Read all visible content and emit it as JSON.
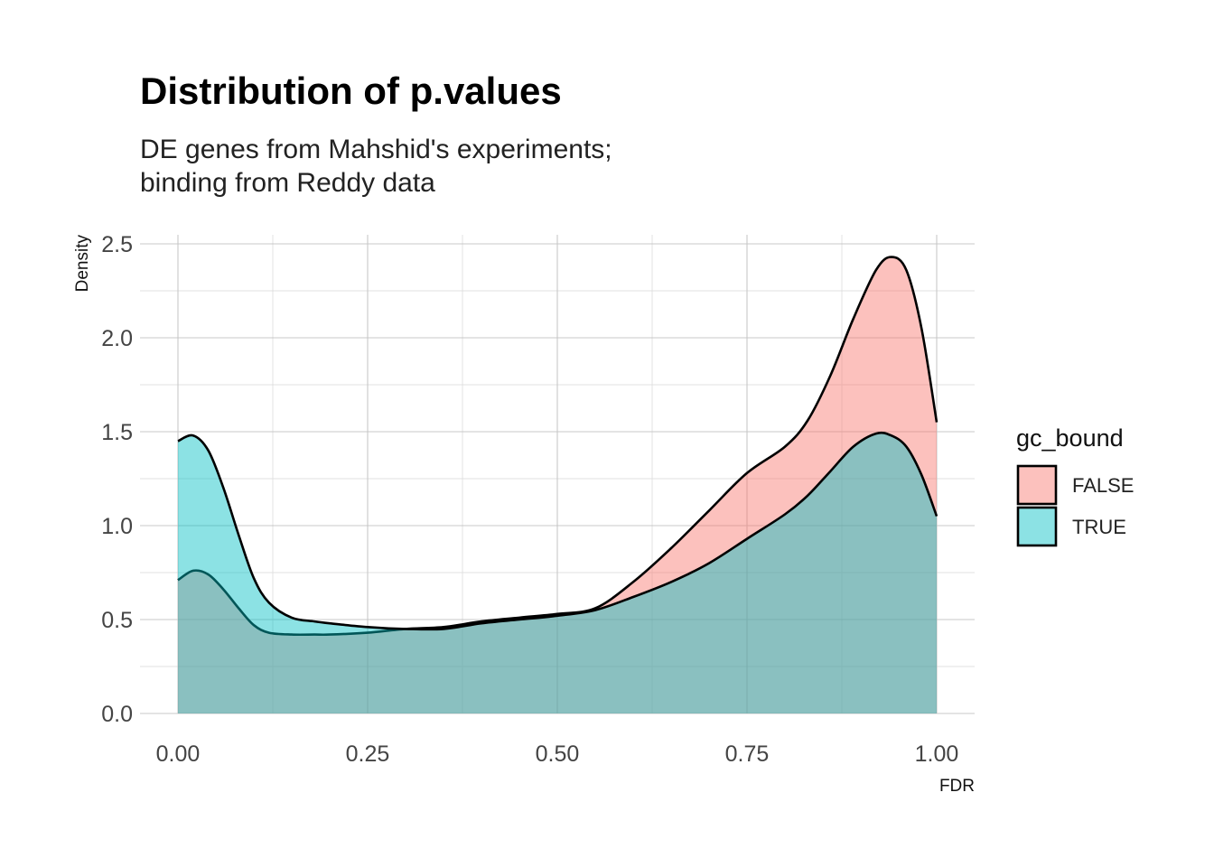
{
  "chart_data": {
    "type": "area",
    "title": "Distribution of p.values",
    "subtitle_lines": [
      "DE genes from Mahshid's experiments;",
      "binding from Reddy data"
    ],
    "xlabel": "FDR",
    "ylabel": "Density",
    "xlim": [
      0,
      1
    ],
    "ylim": [
      0,
      2.5
    ],
    "x_ticks": [
      0,
      0.25,
      0.5,
      0.75,
      1
    ],
    "x_tick_labels": [
      "0.00",
      "0.25",
      "0.50",
      "0.75",
      "1.00"
    ],
    "y_ticks": [
      0,
      0.5,
      1,
      1.5,
      2,
      2.5
    ],
    "y_tick_labels": [
      "0.0",
      "0.5",
      "1.0",
      "1.5",
      "2.0",
      "2.5"
    ],
    "grid": true,
    "legend": {
      "title": "gc_bound",
      "position": "right"
    },
    "series": [
      {
        "name": "FALSE",
        "color": "#F8766D",
        "x": [
          0,
          0.02,
          0.04,
          0.06,
          0.08,
          0.1,
          0.12,
          0.15,
          0.18,
          0.2,
          0.25,
          0.3,
          0.35,
          0.4,
          0.45,
          0.5,
          0.55,
          0.6,
          0.65,
          0.7,
          0.75,
          0.8,
          0.83,
          0.86,
          0.89,
          0.92,
          0.94,
          0.96,
          0.98,
          1.0
        ],
        "values": [
          0.71,
          0.76,
          0.74,
          0.66,
          0.56,
          0.47,
          0.43,
          0.42,
          0.42,
          0.42,
          0.43,
          0.45,
          0.46,
          0.49,
          0.51,
          0.53,
          0.56,
          0.7,
          0.88,
          1.08,
          1.28,
          1.42,
          1.56,
          1.8,
          2.1,
          2.36,
          2.43,
          2.36,
          2.05,
          1.55
        ]
      },
      {
        "name": "TRUE",
        "color": "#00BFC4",
        "x": [
          0,
          0.02,
          0.04,
          0.06,
          0.08,
          0.1,
          0.12,
          0.15,
          0.18,
          0.2,
          0.25,
          0.3,
          0.35,
          0.4,
          0.45,
          0.5,
          0.55,
          0.6,
          0.65,
          0.7,
          0.75,
          0.8,
          0.83,
          0.86,
          0.89,
          0.92,
          0.94,
          0.96,
          0.98,
          1.0
        ],
        "values": [
          1.45,
          1.48,
          1.4,
          1.2,
          0.95,
          0.72,
          0.59,
          0.51,
          0.49,
          0.48,
          0.46,
          0.45,
          0.45,
          0.48,
          0.5,
          0.52,
          0.55,
          0.62,
          0.7,
          0.8,
          0.93,
          1.06,
          1.16,
          1.29,
          1.42,
          1.49,
          1.48,
          1.42,
          1.27,
          1.05
        ]
      }
    ]
  }
}
